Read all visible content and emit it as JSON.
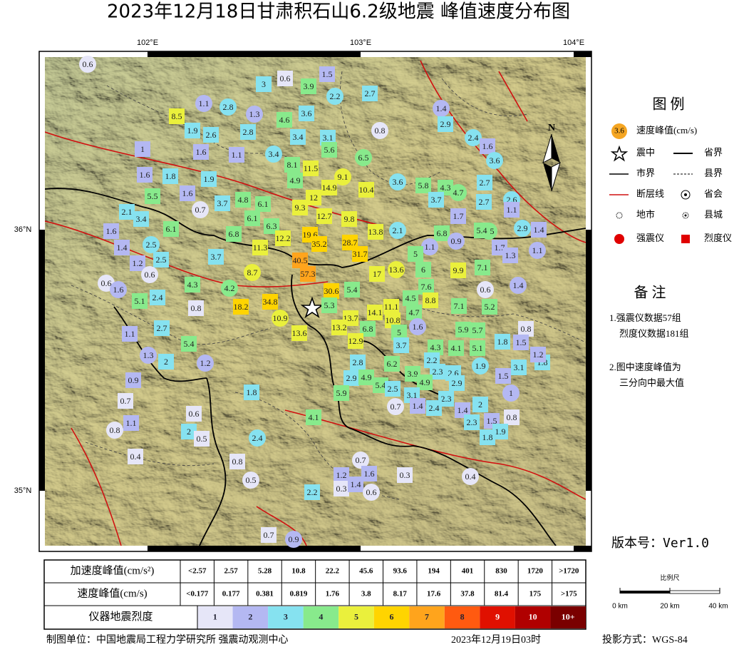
{
  "title": "2023年12月18日甘肃积石山6.2级地震   峰值速度分布图",
  "axes": {
    "lon": [
      "102°E",
      "103°E",
      "104°E"
    ],
    "lat": [
      "36°N",
      "35°N"
    ]
  },
  "legend": {
    "title": "图 例",
    "symbol_value": "3.6",
    "items": [
      "速度峰值(cm/s)",
      "震中",
      "省界",
      "市界",
      "县界",
      "断层线",
      "省会",
      "地市",
      "县城",
      "强震仪",
      "烈度仪"
    ]
  },
  "notes": {
    "title": "备 注",
    "lines": [
      "1.强震仪数据57组",
      "烈度仪数据181组",
      "2.图中速度峰值为",
      "三分向中最大值"
    ]
  },
  "version": "版本号：Ver1.0",
  "scale": {
    "title": "比例尺",
    "labels": [
      "0 km",
      "20 km",
      "40 km"
    ]
  },
  "footer": {
    "org": "制图单位：中国地震局工程力学研究所 强震动观测中心",
    "date": "2023年12月19日03时",
    "projection": "投影方式：WGS-84"
  },
  "table": {
    "acceleration": {
      "label": "加速度峰值(cm/s²)",
      "cells": [
        "<2.57",
        2.57,
        5.28,
        10.8,
        22.2,
        45.6,
        93.6,
        194,
        401,
        830,
        1720,
        ">1720"
      ]
    },
    "velocity": {
      "label": "速度峰值(cm/s)",
      "cells": [
        "<0.177",
        0.177,
        0.381,
        0.819,
        1.76,
        3.8,
        8.17,
        17.6,
        37.8,
        81.4,
        175,
        ">175"
      ]
    },
    "intensity": {
      "label": "仪器地震烈度",
      "levels": [
        {
          "label": "1",
          "color": "#e6e6f8"
        },
        {
          "label": "2",
          "color": "#b4b8f2"
        },
        {
          "label": "3",
          "color": "#86e2f0"
        },
        {
          "label": "4",
          "color": "#88ea8c"
        },
        {
          "label": "5",
          "color": "#eaf03c"
        },
        {
          "label": "6",
          "color": "#ffd400"
        },
        {
          "label": "7",
          "color": "#ffa41c"
        },
        {
          "label": "8",
          "color": "#ff5a10"
        },
        {
          "label": "9",
          "color": "#e01000"
        },
        {
          "label": "10",
          "color": "#b00000"
        },
        {
          "label": "10+",
          "color": "#7a0000"
        }
      ]
    }
  },
  "stations": [
    {
      "value": 0.6,
      "marker": "circle"
    },
    {
      "value": 3.0,
      "marker": "square"
    },
    {
      "value": 0.6,
      "marker": "square"
    },
    {
      "value": 1.5,
      "marker": "square"
    },
    {
      "value": 3.9,
      "marker": "square"
    },
    {
      "value": 2.2,
      "marker": "circle"
    },
    {
      "value": 2.7,
      "marker": "square"
    },
    {
      "value": 1.1,
      "marker": "circle"
    },
    {
      "value": 2.8,
      "marker": "circle"
    },
    {
      "value": 1.3,
      "marker": "circle"
    },
    {
      "value": 8.5,
      "marker": "square"
    },
    {
      "value": 4.6,
      "marker": "square"
    },
    {
      "value": 3.6,
      "marker": "square"
    },
    {
      "value": 1.4,
      "marker": "circle"
    },
    {
      "value": 2.9,
      "marker": "square"
    },
    {
      "value": 1.9,
      "marker": "square"
    },
    {
      "value": 2.6,
      "marker": "square"
    },
    {
      "value": 2.8,
      "marker": "square"
    },
    {
      "value": 3.4,
      "marker": "square"
    },
    {
      "value": 3.1,
      "marker": "square"
    },
    {
      "value": 0.8,
      "marker": "circle"
    },
    {
      "value": 2.4,
      "marker": "circle"
    },
    {
      "value": 1.6,
      "marker": "square"
    },
    {
      "value": 1.0,
      "marker": "square"
    },
    {
      "value": 1.6,
      "marker": "square"
    },
    {
      "value": 1.1,
      "marker": "square"
    },
    {
      "value": 3.4,
      "marker": "circle"
    },
    {
      "value": 5.6,
      "marker": "square"
    },
    {
      "value": 6.5,
      "marker": "circle"
    },
    {
      "value": 3.6,
      "marker": "circle"
    },
    {
      "value": 8.1,
      "marker": "square"
    },
    {
      "value": 11.5,
      "marker": "square"
    },
    {
      "value": 9.1,
      "marker": "circle"
    },
    {
      "value": 1.6,
      "marker": "square"
    },
    {
      "value": 1.8,
      "marker": "square"
    },
    {
      "value": 1.9,
      "marker": "square"
    },
    {
      "value": 4.9,
      "marker": "square"
    },
    {
      "value": 14.9,
      "marker": "square"
    },
    {
      "value": 10.4,
      "marker": "square"
    },
    {
      "value": 3.6,
      "marker": "circle"
    },
    {
      "value": 5.8,
      "marker": "square"
    },
    {
      "value": 4.3,
      "marker": "square"
    },
    {
      "value": 4.7,
      "marker": "circle"
    },
    {
      "value": 2.7,
      "marker": "square"
    },
    {
      "value": 2.6,
      "marker": "circle"
    },
    {
      "value": 5.5,
      "marker": "square"
    },
    {
      "value": 1.6,
      "marker": "square"
    },
    {
      "value": 0.7,
      "marker": "circle"
    },
    {
      "value": 3.7,
      "marker": "square"
    },
    {
      "value": 4.8,
      "marker": "square"
    },
    {
      "value": 6.1,
      "marker": "square"
    },
    {
      "value": 12.0,
      "marker": "square"
    },
    {
      "value": 9.3,
      "marker": "square"
    },
    {
      "value": 3.7,
      "marker": "square"
    },
    {
      "value": 2.7,
      "marker": "square"
    },
    {
      "value": 1.1,
      "marker": "square"
    },
    {
      "value": 2.1,
      "marker": "square"
    },
    {
      "value": 3.4,
      "marker": "square"
    },
    {
      "value": 6.1,
      "marker": "square"
    },
    {
      "value": 12.7,
      "marker": "square"
    },
    {
      "value": 9.8,
      "marker": "square"
    },
    {
      "value": 1.7,
      "marker": "square"
    },
    {
      "value": 2.9,
      "marker": "circle"
    },
    {
      "value": 6.3,
      "marker": "square"
    },
    {
      "value": 1.6,
      "marker": "square"
    },
    {
      "value": 6.1,
      "marker": "square"
    },
    {
      "value": 6.8,
      "marker": "square"
    },
    {
      "value": 12.2,
      "marker": "square"
    },
    {
      "value": 19.6,
      "marker": "square"
    },
    {
      "value": 13.8,
      "marker": "square"
    },
    {
      "value": 2.1,
      "marker": "circle"
    },
    {
      "value": 6.8,
      "marker": "square"
    },
    {
      "value": 6.5,
      "marker": "circle"
    },
    {
      "value": 5.4,
      "marker": "square"
    },
    {
      "value": 1.4,
      "marker": "square"
    },
    {
      "value": 2.5,
      "marker": "circle"
    },
    {
      "value": 35.2,
      "marker": "square"
    },
    {
      "value": 28.7,
      "marker": "square"
    },
    {
      "value": 0.9,
      "marker": "circle"
    },
    {
      "value": 1.1,
      "marker": "circle"
    },
    {
      "value": 1.7,
      "marker": "square"
    },
    {
      "value": 1.1,
      "marker": "circle"
    },
    {
      "value": 1.4,
      "marker": "square"
    },
    {
      "value": 11.3,
      "marker": "square"
    },
    {
      "value": 31.7,
      "marker": "square"
    },
    {
      "value": 5.0,
      "marker": "square"
    },
    {
      "value": 1.3,
      "marker": "square"
    },
    {
      "value": 2.5,
      "marker": "square"
    },
    {
      "value": 3.7,
      "marker": "square"
    },
    {
      "value": 40.5,
      "marker": "square"
    },
    {
      "value": 1.2,
      "marker": "square"
    },
    {
      "value": 0.6,
      "marker": "circle"
    },
    {
      "value": 8.7,
      "marker": "circle"
    },
    {
      "value": 57.3,
      "marker": "square"
    },
    {
      "value": 17.0,
      "marker": "square"
    },
    {
      "value": 13.6,
      "marker": "circle"
    },
    {
      "value": 6.0,
      "marker": "square"
    },
    {
      "value": 9.9,
      "marker": "square"
    },
    {
      "value": 7.1,
      "marker": "square"
    },
    {
      "value": 0.6,
      "marker": "circle"
    },
    {
      "value": 1.6,
      "marker": "circle"
    },
    {
      "value": 4.3,
      "marker": "square"
    },
    {
      "value": 4.2,
      "marker": "circle"
    },
    {
      "value": 30.6,
      "marker": "square"
    },
    {
      "value": 5.4,
      "marker": "square"
    },
    {
      "value": 7.6,
      "marker": "square"
    },
    {
      "value": 1.4,
      "marker": "circle"
    },
    {
      "value": 0.6,
      "marker": "circle"
    },
    {
      "value": 5.1,
      "marker": "square"
    },
    {
      "value": 2.4,
      "marker": "square"
    },
    {
      "value": 18.2,
      "marker": "square"
    },
    {
      "value": 34.8,
      "marker": "square"
    },
    {
      "value": 4.5,
      "marker": "square"
    },
    {
      "value": 8.8,
      "marker": "square"
    },
    {
      "value": 7.1,
      "marker": "square"
    },
    {
      "value": 5.2,
      "marker": "square"
    },
    {
      "value": 5.3,
      "marker": "square"
    },
    {
      "value": 14.1,
      "marker": "square"
    },
    {
      "value": 11.1,
      "marker": "square"
    },
    {
      "value": 4.7,
      "marker": "square"
    },
    {
      "value": 0.8,
      "marker": "square"
    },
    {
      "value": 10.9,
      "marker": "circle"
    },
    {
      "value": 13.7,
      "marker": "square"
    },
    {
      "value": 10.8,
      "marker": "square"
    },
    {
      "value": 1.6,
      "marker": "circle"
    },
    {
      "value": 5.9,
      "marker": "square"
    },
    {
      "value": 5.7,
      "marker": "square"
    },
    {
      "value": 0.8,
      "marker": "square"
    },
    {
      "value": 13.2,
      "marker": "square"
    },
    {
      "value": 6.8,
      "marker": "square"
    },
    {
      "value": 2.7,
      "marker": "square"
    },
    {
      "value": 1.1,
      "marker": "square"
    },
    {
      "value": 13.6,
      "marker": "square"
    },
    {
      "value": 5.0,
      "marker": "square"
    },
    {
      "value": 12.9,
      "marker": "square"
    },
    {
      "value": 1.8,
      "marker": "square"
    },
    {
      "value": 1.5,
      "marker": "square"
    },
    {
      "value": 5.4,
      "marker": "square"
    },
    {
      "value": 3.7,
      "marker": "square"
    },
    {
      "value": 4.3,
      "marker": "square"
    },
    {
      "value": 4.1,
      "marker": "square"
    },
    {
      "value": 5.1,
      "marker": "square"
    },
    {
      "value": 1.3,
      "marker": "circle"
    },
    {
      "value": 2.0,
      "marker": "square"
    },
    {
      "value": 1.2,
      "marker": "circle"
    },
    {
      "value": 2.8,
      "marker": "square"
    },
    {
      "value": 6.2,
      "marker": "square"
    },
    {
      "value": 2.2,
      "marker": "square"
    },
    {
      "value": 1.9,
      "marker": "circle"
    },
    {
      "value": 1.8,
      "marker": "square"
    },
    {
      "value": 1.2,
      "marker": "square"
    },
    {
      "value": 3.1,
      "marker": "square"
    },
    {
      "value": 0.9,
      "marker": "square"
    },
    {
      "value": 3.9,
      "marker": "square"
    },
    {
      "value": 2.3,
      "marker": "square"
    },
    {
      "value": 2.6,
      "marker": "square"
    },
    {
      "value": 1.5,
      "marker": "square"
    },
    {
      "value": 2.9,
      "marker": "square"
    },
    {
      "value": 4.9,
      "marker": "square"
    },
    {
      "value": 5.4,
      "marker": "square"
    },
    {
      "value": 2.9,
      "marker": "square"
    },
    {
      "value": 4.9,
      "marker": "square"
    },
    {
      "value": 2.5,
      "marker": "square"
    },
    {
      "value": 1.0,
      "marker": "circle"
    },
    {
      "value": 1.8,
      "marker": "square"
    },
    {
      "value": 5.9,
      "marker": "square"
    },
    {
      "value": 3.1,
      "marker": "square"
    },
    {
      "value": 0.7,
      "marker": "square"
    },
    {
      "value": 2.3,
      "marker": "square"
    },
    {
      "value": 2.0,
      "marker": "square"
    },
    {
      "value": 0.7,
      "marker": "circle"
    },
    {
      "value": 1.4,
      "marker": "square"
    },
    {
      "value": 2.4,
      "marker": "square"
    },
    {
      "value": 1.4,
      "marker": "square"
    },
    {
      "value": 0.6,
      "marker": "square"
    },
    {
      "value": 4.1,
      "marker": "square"
    },
    {
      "value": 0.8,
      "marker": "square"
    },
    {
      "value": 1.1,
      "marker": "square"
    },
    {
      "value": 2.3,
      "marker": "square"
    },
    {
      "value": 1.5,
      "marker": "square"
    },
    {
      "value": 0.8,
      "marker": "circle"
    },
    {
      "value": 2.0,
      "marker": "square"
    },
    {
      "value": 0.5,
      "marker": "square"
    },
    {
      "value": 2.4,
      "marker": "circle"
    },
    {
      "value": 1.9,
      "marker": "square"
    },
    {
      "value": 1.8,
      "marker": "square"
    },
    {
      "value": 0.4,
      "marker": "square"
    },
    {
      "value": 0.7,
      "marker": "circle"
    },
    {
      "value": 0.8,
      "marker": "square"
    },
    {
      "value": 1.2,
      "marker": "square"
    },
    {
      "value": 1.6,
      "marker": "square"
    },
    {
      "value": 0.3,
      "marker": "square"
    },
    {
      "value": 0.4,
      "marker": "circle"
    },
    {
      "value": 0.5,
      "marker": "circle"
    },
    {
      "value": 0.3,
      "marker": "square"
    },
    {
      "value": 1.4,
      "marker": "square"
    },
    {
      "value": 0.6,
      "marker": "circle"
    },
    {
      "value": 2.2,
      "marker": "square"
    },
    {
      "value": 0.7,
      "marker": "square"
    },
    {
      "value": 0.9,
      "marker": "circle"
    }
  ]
}
